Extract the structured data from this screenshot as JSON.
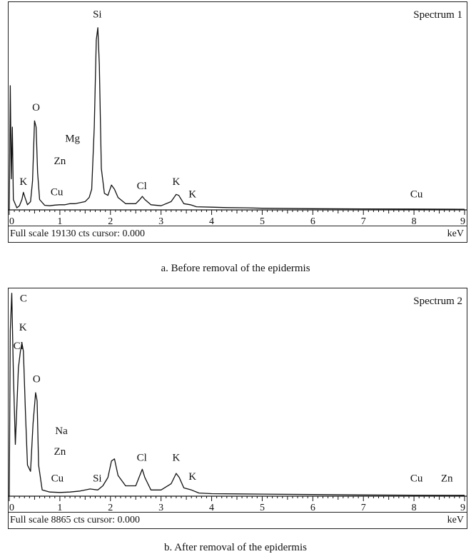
{
  "chart_data": [
    {
      "type": "line",
      "title": "Spectrum 1",
      "caption": "a. Before removal of the epidermis",
      "xlabel": "keV",
      "xlim": [
        0,
        9
      ],
      "x_ticks": [
        "0",
        "1",
        "2",
        "3",
        "4",
        "5",
        "6",
        "7",
        "8",
        "9"
      ],
      "full_scale_text": "Full scale 19130 cts cursor: 0.000",
      "y_max_counts": 19130,
      "series": [
        {
          "points": [
            [
              0.0,
              0.0
            ],
            [
              0.02,
              0.6
            ],
            [
              0.04,
              0.15
            ],
            [
              0.06,
              0.4
            ],
            [
              0.08,
              0.05
            ],
            [
              0.15,
              0.01
            ],
            [
              0.2,
              0.02
            ],
            [
              0.25,
              0.05
            ],
            [
              0.28,
              0.085
            ],
            [
              0.31,
              0.06
            ],
            [
              0.36,
              0.025
            ],
            [
              0.42,
              0.04
            ],
            [
              0.46,
              0.14
            ],
            [
              0.5,
              0.43
            ],
            [
              0.53,
              0.4
            ],
            [
              0.56,
              0.18
            ],
            [
              0.6,
              0.05
            ],
            [
              0.7,
              0.022
            ],
            [
              0.8,
              0.02
            ],
            [
              0.9,
              0.023
            ],
            [
              1.0,
              0.025
            ],
            [
              1.1,
              0.025
            ],
            [
              1.2,
              0.03
            ],
            [
              1.3,
              0.03
            ],
            [
              1.4,
              0.035
            ],
            [
              1.5,
              0.04
            ],
            [
              1.58,
              0.06
            ],
            [
              1.63,
              0.1
            ],
            [
              1.68,
              0.4
            ],
            [
              1.72,
              0.82
            ],
            [
              1.75,
              0.88
            ],
            [
              1.78,
              0.7
            ],
            [
              1.82,
              0.2
            ],
            [
              1.88,
              0.08
            ],
            [
              1.95,
              0.07
            ],
            [
              2.02,
              0.12
            ],
            [
              2.08,
              0.1
            ],
            [
              2.15,
              0.06
            ],
            [
              2.3,
              0.03
            ],
            [
              2.5,
              0.03
            ],
            [
              2.58,
              0.05
            ],
            [
              2.63,
              0.065
            ],
            [
              2.68,
              0.05
            ],
            [
              2.8,
              0.025
            ],
            [
              3.0,
              0.02
            ],
            [
              3.2,
              0.04
            ],
            [
              3.3,
              0.075
            ],
            [
              3.35,
              0.07
            ],
            [
              3.45,
              0.03
            ],
            [
              3.58,
              0.025
            ],
            [
              3.7,
              0.015
            ],
            [
              4.0,
              0.013
            ],
            [
              4.3,
              0.011
            ],
            [
              4.7,
              0.01
            ],
            [
              5.0,
              0.008
            ],
            [
              6.0,
              0.006
            ],
            [
              7.0,
              0.005
            ],
            [
              8.0,
              0.004
            ],
            [
              9.0,
              0.003
            ]
          ]
        }
      ],
      "peak_labels": [
        {
          "text": "Si",
          "x": 1.74,
          "y": 0.93
        },
        {
          "text": "O",
          "x": 0.53,
          "y": 0.48
        },
        {
          "text": "Mg",
          "x": 1.25,
          "y": 0.33
        },
        {
          "text": "Zn",
          "x": 1.0,
          "y": 0.22
        },
        {
          "text": "K",
          "x": 0.28,
          "y": 0.12
        },
        {
          "text": "Cu",
          "x": 0.94,
          "y": 0.07
        },
        {
          "text": "Cl",
          "x": 2.62,
          "y": 0.1
        },
        {
          "text": "K",
          "x": 3.3,
          "y": 0.12
        },
        {
          "text": "K",
          "x": 3.62,
          "y": 0.06
        },
        {
          "text": "Cu",
          "x": 8.05,
          "y": 0.06
        }
      ]
    },
    {
      "type": "line",
      "title": "Spectrum 2",
      "caption": "b. After removal of the epidermis",
      "xlabel": "keV",
      "xlim": [
        0,
        9
      ],
      "x_ticks": [
        "0",
        "1",
        "2",
        "3",
        "4",
        "5",
        "6",
        "7",
        "8",
        "9"
      ],
      "full_scale_text": "Full scale 8865 cts cursor: 0.000",
      "y_max_counts": 8865,
      "series": [
        {
          "points": [
            [
              0.0,
              0.0
            ],
            [
              0.02,
              0.8
            ],
            [
              0.05,
              0.98
            ],
            [
              0.08,
              0.6
            ],
            [
              0.12,
              0.25
            ],
            [
              0.18,
              0.62
            ],
            [
              0.22,
              0.7
            ],
            [
              0.25,
              0.74
            ],
            [
              0.28,
              0.7
            ],
            [
              0.32,
              0.4
            ],
            [
              0.36,
              0.15
            ],
            [
              0.42,
              0.12
            ],
            [
              0.47,
              0.35
            ],
            [
              0.52,
              0.5
            ],
            [
              0.55,
              0.46
            ],
            [
              0.58,
              0.15
            ],
            [
              0.65,
              0.03
            ],
            [
              0.8,
              0.02
            ],
            [
              1.0,
              0.018
            ],
            [
              1.2,
              0.02
            ],
            [
              1.4,
              0.025
            ],
            [
              1.6,
              0.035
            ],
            [
              1.75,
              0.03
            ],
            [
              1.85,
              0.05
            ],
            [
              1.95,
              0.09
            ],
            [
              2.02,
              0.17
            ],
            [
              2.08,
              0.18
            ],
            [
              2.15,
              0.1
            ],
            [
              2.3,
              0.05
            ],
            [
              2.5,
              0.05
            ],
            [
              2.58,
              0.1
            ],
            [
              2.63,
              0.13
            ],
            [
              2.68,
              0.09
            ],
            [
              2.8,
              0.03
            ],
            [
              3.0,
              0.03
            ],
            [
              3.2,
              0.06
            ],
            [
              3.3,
              0.11
            ],
            [
              3.36,
              0.09
            ],
            [
              3.45,
              0.04
            ],
            [
              3.6,
              0.03
            ],
            [
              3.75,
              0.015
            ],
            [
              4.0,
              0.012
            ],
            [
              4.5,
              0.011
            ],
            [
              5.0,
              0.01
            ],
            [
              6.0,
              0.008
            ],
            [
              7.0,
              0.006
            ],
            [
              8.0,
              0.005
            ],
            [
              9.0,
              0.004
            ]
          ]
        }
      ],
      "peak_labels": [
        {
          "text": "C",
          "x": 0.28,
          "y": 0.94
        },
        {
          "text": "K",
          "x": 0.27,
          "y": 0.8
        },
        {
          "text": "Cl",
          "x": 0.18,
          "y": 0.71
        },
        {
          "text": "O",
          "x": 0.54,
          "y": 0.55
        },
        {
          "text": "Na",
          "x": 1.03,
          "y": 0.3
        },
        {
          "text": "Zn",
          "x": 1.0,
          "y": 0.2
        },
        {
          "text": "Cu",
          "x": 0.95,
          "y": 0.07
        },
        {
          "text": "Si",
          "x": 1.74,
          "y": 0.07
        },
        {
          "text": "Cl",
          "x": 2.62,
          "y": 0.17
        },
        {
          "text": "K",
          "x": 3.3,
          "y": 0.17
        },
        {
          "text": "K",
          "x": 3.62,
          "y": 0.08
        },
        {
          "text": "Cu",
          "x": 8.05,
          "y": 0.07
        },
        {
          "text": "Zn",
          "x": 8.65,
          "y": 0.07
        }
      ]
    }
  ]
}
